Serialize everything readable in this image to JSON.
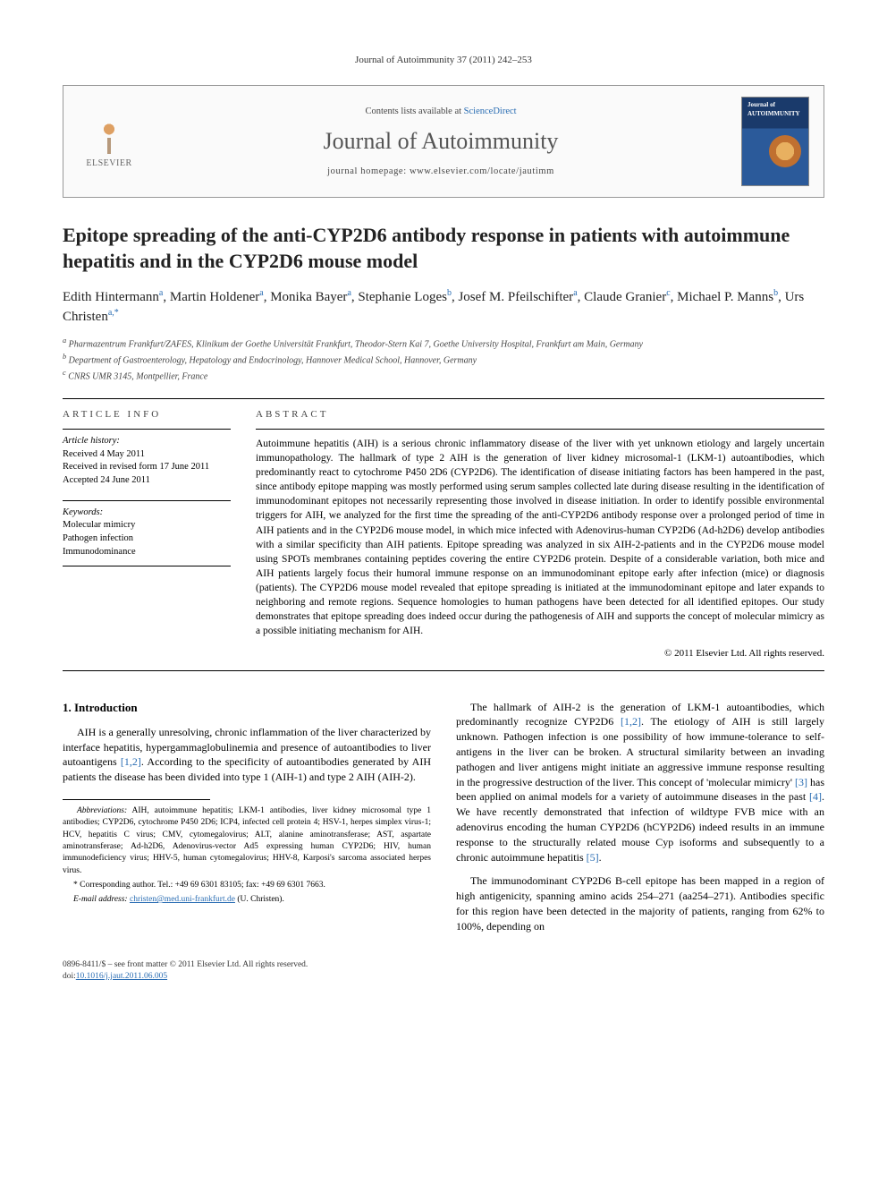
{
  "running_header": "Journal of Autoimmunity 37 (2011) 242–253",
  "header": {
    "contents_prefix": "Contents lists available at ",
    "contents_link": "ScienceDirect",
    "journal_name": "Journal of Autoimmunity",
    "homepage_prefix": "journal homepage: ",
    "homepage_url": "www.elsevier.com/locate/jautimm",
    "publisher": "ELSEVIER",
    "cover_label": "Journal of AUTOIMMUNITY"
  },
  "title": "Epitope spreading of the anti-CYP2D6 antibody response in patients with autoimmune hepatitis and in the CYP2D6 mouse model",
  "authors_html": "Edith Hintermann<sup>a</sup>, Martin Holdener<sup>a</sup>, Monika Bayer<sup>a</sup>, Stephanie Loges<sup>b</sup>, Josef M. Pfeilschifter<sup>a</sup>, Claude Granier<sup>c</sup>, Michael P. Manns<sup>b</sup>, Urs Christen<sup>a,*</sup>",
  "affiliations": {
    "a": "Pharmazentrum Frankfurt/ZAFES, Klinikum der Goethe Universität Frankfurt, Theodor-Stern Kai 7, Goethe University Hospital, Frankfurt am Main, Germany",
    "b": "Department of Gastroenterology, Hepatology and Endocrinology, Hannover Medical School, Hannover, Germany",
    "c": "CNRS UMR 3145, Montpellier, France"
  },
  "article_info_label": "ARTICLE INFO",
  "abstract_label": "ABSTRACT",
  "history": {
    "label": "Article history:",
    "received": "Received 4 May 2011",
    "revised": "Received in revised form 17 June 2011",
    "accepted": "Accepted 24 June 2011"
  },
  "keywords": {
    "label": "Keywords:",
    "items": [
      "Molecular mimicry",
      "Pathogen infection",
      "Immunodominance"
    ]
  },
  "abstract": "Autoimmune hepatitis (AIH) is a serious chronic inflammatory disease of the liver with yet unknown etiology and largely uncertain immunopathology. The hallmark of type 2 AIH is the generation of liver kidney microsomal-1 (LKM-1) autoantibodies, which predominantly react to cytochrome P450 2D6 (CYP2D6). The identification of disease initiating factors has been hampered in the past, since antibody epitope mapping was mostly performed using serum samples collected late during disease resulting in the identification of immunodominant epitopes not necessarily representing those involved in disease initiation. In order to identify possible environmental triggers for AIH, we analyzed for the first time the spreading of the anti-CYP2D6 antibody response over a prolonged period of time in AIH patients and in the CYP2D6 mouse model, in which mice infected with Adenovirus-human CYP2D6 (Ad-h2D6) develop antibodies with a similar specificity than AIH patients. Epitope spreading was analyzed in six AIH-2-patients and in the CYP2D6 mouse model using SPOTs membranes containing peptides covering the entire CYP2D6 protein. Despite of a considerable variation, both mice and AIH patients largely focus their humoral immune response on an immunodominant epitope early after infection (mice) or diagnosis (patients). The CYP2D6 mouse model revealed that epitope spreading is initiated at the immunodominant epitope and later expands to neighboring and remote regions. Sequence homologies to human pathogens have been detected for all identified epitopes. Our study demonstrates that epitope spreading does indeed occur during the pathogenesis of AIH and supports the concept of molecular mimicry as a possible initiating mechanism for AIH.",
  "copyright": "© 2011 Elsevier Ltd. All rights reserved.",
  "section1_heading": "1. Introduction",
  "col1_para1": "AIH is a generally unresolving, chronic inflammation of the liver characterized by interface hepatitis, hypergammaglobulinemia and presence of autoantibodies to liver autoantigens [1,2]. According to the specificity of autoantibodies generated by AIH patients the disease has been divided into type 1 (AIH-1) and type 2 AIH (AIH-2).",
  "col2_para1": "The hallmark of AIH-2 is the generation of LKM-1 autoantibodies, which predominantly recognize CYP2D6 [1,2]. The etiology of AIH is still largely unknown. Pathogen infection is one possibility of how immune-tolerance to self-antigens in the liver can be broken. A structural similarity between an invading pathogen and liver antigens might initiate an aggressive immune response resulting in the progressive destruction of the liver. This concept of 'molecular mimicry' [3] has been applied on animal models for a variety of autoimmune diseases in the past [4]. We have recently demonstrated that infection of wildtype FVB mice with an adenovirus encoding the human CYP2D6 (hCYP2D6) indeed results in an immune response to the structurally related mouse Cyp isoforms and subsequently to a chronic autoimmune hepatitis [5].",
  "col2_para2": "The immunodominant CYP2D6 B-cell epitope has been mapped in a region of high antigenicity, spanning amino acids 254–271 (aa254–271). Antibodies specific for this region have been detected in the majority of patients, ranging from 62% to 100%, depending on",
  "abbreviations_label": "Abbreviations:",
  "abbreviations_text": " AIH, autoimmune hepatitis; LKM-1 antibodies, liver kidney microsomal type 1 antibodies; CYP2D6, cytochrome P450 2D6; ICP4, infected cell protein 4; HSV-1, herpes simplex virus-1; HCV, hepatitis C virus; CMV, cytomegalovirus; ALT, alanine aminotransferase; AST, aspartate aminotransferase; Ad-h2D6, Adenovirus-vector Ad5 expressing human CYP2D6; HIV, human immunodeficiency virus; HHV-5, human cytomegalovirus; HHV-8, Karposi's sarcoma associated herpes virus.",
  "corresponding_label": "* Corresponding author. ",
  "corresponding_text": "Tel.: +49 69 6301 83105; fax: +49 69 6301 7663.",
  "email_label": "E-mail address: ",
  "email_value": "christen@med.uni-frankfurt.de",
  "email_suffix": " (U. Christen).",
  "footer_line1": "0896-8411/$ – see front matter © 2011 Elsevier Ltd. All rights reserved.",
  "footer_doi_prefix": "doi:",
  "footer_doi": "10.1016/j.jaut.2011.06.005",
  "colors": {
    "link": "#2a6db3",
    "text": "#000000",
    "muted": "#555555"
  }
}
